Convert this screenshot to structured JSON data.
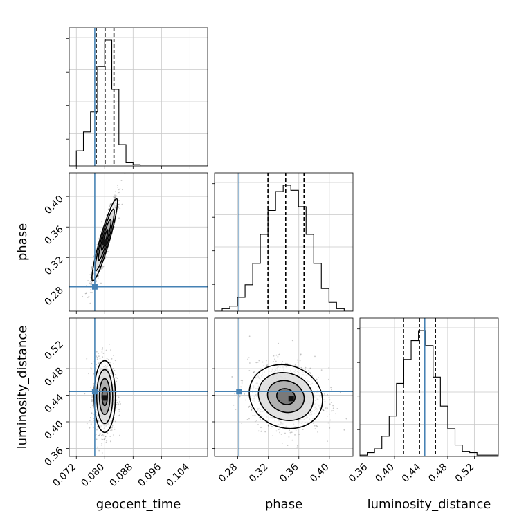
{
  "chart_data": {
    "type": "corner",
    "parameters": [
      "geocent_time",
      "phase",
      "luminosity_distance"
    ],
    "truths": {
      "geocent_time": 0.0772,
      "phase": 0.2815,
      "luminosity_distance": 0.4455
    },
    "truth_color": "#4682b4",
    "axes": {
      "geocent_time": {
        "label": "geocent_time",
        "range": [
          0.07,
          0.109
        ],
        "ticks": [
          0.072,
          0.08,
          0.088,
          0.096,
          0.104
        ],
        "tick_labels": [
          "0.072",
          "0.080",
          "0.088",
          "0.096",
          "0.104"
        ]
      },
      "phase": {
        "label": "phase",
        "range": [
          0.2495,
          0.431
        ],
        "ticks": [
          0.28,
          0.32,
          0.36,
          0.4
        ],
        "tick_labels": [
          "0.28",
          "0.32",
          "0.36",
          "0.40"
        ]
      },
      "luminosity_distance": {
        "label": "luminosity_distance",
        "range": [
          0.348,
          0.556
        ],
        "ticks": [
          0.36,
          0.4,
          0.44,
          0.48,
          0.52
        ],
        "tick_labels": [
          "0.36",
          "0.40",
          "0.44",
          "0.48",
          "0.52"
        ]
      }
    },
    "histograms": {
      "geocent_time": {
        "edges": [
          0.07,
          0.072,
          0.074,
          0.076,
          0.078,
          0.08,
          0.082,
          0.084,
          0.086,
          0.088,
          0.09,
          0.092,
          0.094,
          0.096,
          0.098,
          0.1,
          0.102,
          0.104,
          0.106,
          0.109
        ],
        "heights": [
          0,
          0.12,
          0.27,
          0.43,
          0.79,
          1.0,
          0.61,
          0.17,
          0.03,
          0.01,
          0,
          0,
          0,
          0,
          0,
          0,
          0,
          0,
          0
        ],
        "quantiles": [
          0.0776,
          0.0801,
          0.0826
        ]
      },
      "phase": {
        "edges": [
          0.2495,
          0.2595,
          0.2695,
          0.2795,
          0.2895,
          0.2995,
          0.3095,
          0.3195,
          0.3295,
          0.3395,
          0.3495,
          0.3595,
          0.3695,
          0.3795,
          0.3895,
          0.3995,
          0.4095,
          0.4195,
          0.431
        ],
        "heights": [
          0,
          0.02,
          0.04,
          0.11,
          0.21,
          0.38,
          0.61,
          0.8,
          0.95,
          1.0,
          0.96,
          0.83,
          0.61,
          0.38,
          0.18,
          0.07,
          0.02,
          0
        ],
        "quantiles": [
          0.3195,
          0.3428,
          0.3668
        ]
      },
      "luminosity_distance": {
        "edges": [
          0.348,
          0.359,
          0.37,
          0.381,
          0.392,
          0.403,
          0.414,
          0.425,
          0.436,
          0.447,
          0.458,
          0.469,
          0.48,
          0.491,
          0.502,
          0.513,
          0.524,
          0.535,
          0.556
        ],
        "heights": [
          0.01,
          0.03,
          0.06,
          0.16,
          0.32,
          0.58,
          0.77,
          0.92,
          1.0,
          0.88,
          0.63,
          0.4,
          0.22,
          0.09,
          0.04,
          0.03,
          0.01,
          0.01
        ],
        "quantiles": [
          0.4135,
          0.4375,
          0.4615
        ]
      }
    },
    "pair_panels": [
      {
        "x": "geocent_time",
        "y": "phase",
        "samples": {
          "center": [
            0.08,
            0.343
          ],
          "sd": [
            0.0018,
            0.027
          ],
          "correlation": 0.92,
          "n": 1000
        },
        "contour_shading": "#d0d0d0",
        "peak": [
          0.08,
          0.34
        ]
      },
      {
        "x": "geocent_time",
        "y": "luminosity_distance",
        "samples": {
          "center": [
            0.08,
            0.438
          ],
          "sd": [
            0.0015,
            0.027
          ],
          "correlation": 0.0,
          "n": 1000
        },
        "contour_shading": "#d0d0d0",
        "peak": [
          0.08,
          0.436
        ]
      },
      {
        "x": "phase",
        "y": "luminosity_distance",
        "samples": {
          "center": [
            0.343,
            0.438
          ],
          "sd": [
            0.024,
            0.024
          ],
          "correlation": -0.12,
          "n": 1200
        },
        "contour_shading": "#d0d0d0",
        "peak": [
          0.35,
          0.435
        ]
      }
    ],
    "grid": true,
    "contour_levels": [
      "0.5-sigma",
      "1-sigma",
      "1.5-sigma",
      "2-sigma"
    ]
  }
}
